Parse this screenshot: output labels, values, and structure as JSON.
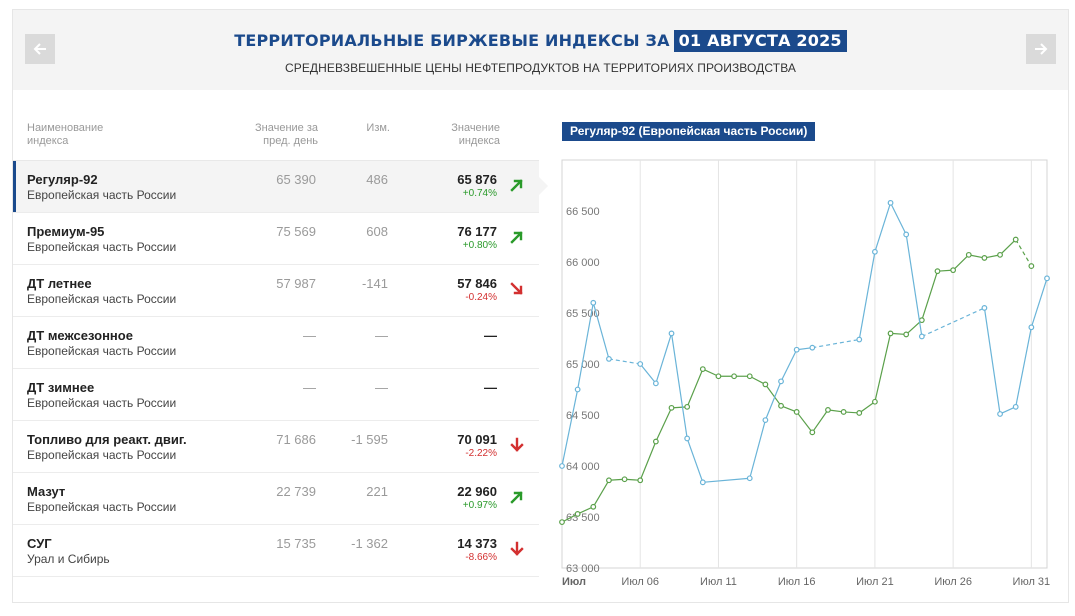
{
  "header": {
    "title": "ТЕРРИТОРИАЛЬНЫЕ БИРЖЕВЫЕ ИНДЕКСЫ ЗА",
    "date": "01 АВГУСТА 2025",
    "subtitle": "СРЕДНЕВЗВЕШЕННЫЕ ЦЕНЫ НЕФТЕПРОДУКТОВ НА ТЕРРИТОРИЯХ ПРОИЗВОДСТВА",
    "prev_icon": "arrow-left-icon",
    "next_icon": "arrow-right-icon"
  },
  "table": {
    "headers": {
      "name_line1": "Наименование",
      "name_line2": "индекса",
      "prev_line1": "Значение за",
      "prev_line2": "пред. день",
      "change": "Изм.",
      "value_line1": "Значение",
      "value_line2": "индекса"
    },
    "rows": [
      {
        "name": "Регуляр-92",
        "region": "Европейская часть России",
        "prev": "65 390",
        "change": "486",
        "value": "65 876",
        "pct": "+0.74%",
        "trend": "up"
      },
      {
        "name": "Премиум-95",
        "region": "Европейская часть России",
        "prev": "75 569",
        "change": "608",
        "value": "76 177",
        "pct": "+0.80%",
        "trend": "up"
      },
      {
        "name": "ДТ летнее",
        "region": "Европейская часть России",
        "prev": "57 987",
        "change": "-141",
        "value": "57 846",
        "pct": "-0.24%",
        "trend": "down-right"
      },
      {
        "name": "ДТ межсезонное",
        "region": "Европейская часть России",
        "prev": "—",
        "change": "—",
        "value": "—",
        "pct": "",
        "trend": "none"
      },
      {
        "name": "ДТ зимнее",
        "region": "Европейская часть России",
        "prev": "—",
        "change": "—",
        "value": "—",
        "pct": "",
        "trend": "none"
      },
      {
        "name": "Топливо для реакт. двиг.",
        "region": "Европейская часть России",
        "prev": "71 686",
        "change": "-1 595",
        "value": "70 091",
        "pct": "-2.22%",
        "trend": "down"
      },
      {
        "name": "Мазут",
        "region": "Европейская часть России",
        "prev": "22 739",
        "change": "221",
        "value": "22 960",
        "pct": "+0.97%",
        "trend": "up"
      },
      {
        "name": "СУГ",
        "region": "Урал и Сибирь",
        "prev": "15 735",
        "change": "-1 362",
        "value": "14 373",
        "pct": "-8.66%",
        "trend": "down"
      }
    ]
  },
  "colors": {
    "brand": "#1b4a8c",
    "up": "#2a9a2a",
    "down": "#d33030",
    "series_green": "#5aa04a",
    "series_blue": "#6ab4d8"
  },
  "chart_data": {
    "type": "line",
    "title": "Регуляр-92 (Европейская часть России)",
    "xlabel": "",
    "ylabel": "",
    "xlim": [
      1,
      32
    ],
    "ylim": [
      63000,
      67000
    ],
    "yticks": [
      63000,
      63500,
      64000,
      64500,
      65000,
      65500,
      66000,
      66500
    ],
    "ytick_labels": [
      "63 000",
      "63 500",
      "64 000",
      "64 500",
      "65 000",
      "65 500",
      "66 000",
      "66 500"
    ],
    "xticks": [
      1,
      6,
      11,
      16,
      21,
      26,
      31
    ],
    "xtick_labels": [
      "Июл",
      "Июл 06",
      "Июл 11",
      "Июл 16",
      "Июл 21",
      "Июл 26",
      "Июл 31"
    ],
    "grid": true,
    "legend": "none",
    "series": [
      {
        "color": "#5aa04a",
        "points": [
          [
            1,
            63450
          ],
          [
            2,
            63530
          ],
          [
            3,
            63600
          ],
          [
            4,
            63860
          ],
          [
            5,
            63870
          ],
          [
            6,
            63860
          ],
          [
            7,
            64240
          ],
          [
            8,
            64570
          ],
          [
            9,
            64580
          ],
          [
            10,
            64950
          ],
          [
            11,
            64880
          ],
          [
            12,
            64880
          ],
          [
            13,
            64880
          ],
          [
            14,
            64800
          ],
          [
            15,
            64590
          ],
          [
            16,
            64530
          ],
          [
            17,
            64330
          ],
          [
            18,
            64550
          ],
          [
            19,
            64530
          ],
          [
            20,
            64520
          ],
          [
            21,
            64630
          ],
          [
            22,
            65300
          ],
          [
            23,
            65290
          ],
          [
            24,
            65430
          ],
          [
            25,
            65910
          ],
          [
            26,
            65920
          ],
          [
            27,
            66070
          ],
          [
            28,
            66040
          ],
          [
            29,
            66070
          ],
          [
            30,
            66220
          ],
          [
            31,
            65960
          ]
        ],
        "dashed_segments": [
          [
            30,
            31
          ]
        ]
      },
      {
        "color": "#6ab4d8",
        "points": [
          [
            1,
            64000
          ],
          [
            2,
            64750
          ],
          [
            3,
            65600
          ],
          [
            4,
            65050
          ],
          [
            6,
            65000
          ],
          [
            7,
            64810
          ],
          [
            8,
            65300
          ],
          [
            9,
            64270
          ],
          [
            10,
            63840
          ],
          [
            13,
            63880
          ],
          [
            14,
            64450
          ],
          [
            15,
            64830
          ],
          [
            16,
            65140
          ],
          [
            17,
            65160
          ],
          [
            20,
            65240
          ],
          [
            21,
            66100
          ],
          [
            22,
            66580
          ],
          [
            23,
            66270
          ],
          [
            24,
            65270
          ],
          [
            28,
            65550
          ],
          [
            29,
            64510
          ],
          [
            30,
            64580
          ],
          [
            31,
            65360
          ],
          [
            32,
            65840
          ]
        ],
        "dashed_segments": [
          [
            4,
            6
          ],
          [
            17,
            20
          ],
          [
            24,
            28
          ]
        ]
      }
    ]
  }
}
